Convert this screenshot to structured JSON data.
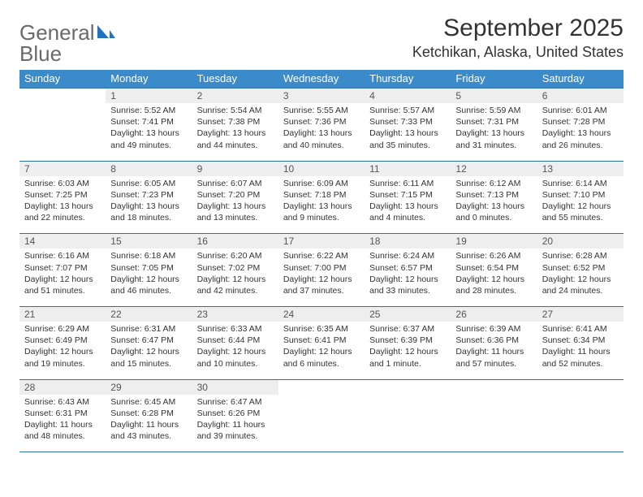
{
  "brand": {
    "word1": "General",
    "word2": "Blue",
    "textColor": "#6a6a6a",
    "accentColor": "#1f74bf"
  },
  "title": "September 2025",
  "location": "Ketchikan, Alaska, United States",
  "colors": {
    "headerBg": "#3b8bca",
    "headerText": "#ffffff",
    "dayBg": "#eeeeee",
    "rule": "#2e6fa8"
  },
  "weekdays": [
    "Sunday",
    "Monday",
    "Tuesday",
    "Wednesday",
    "Thursday",
    "Friday",
    "Saturday"
  ],
  "weeks": [
    [
      {
        "n": "",
        "lines": [
          "",
          "",
          "",
          ""
        ]
      },
      {
        "n": "1",
        "lines": [
          "Sunrise: 5:52 AM",
          "Sunset: 7:41 PM",
          "Daylight: 13 hours",
          "and 49 minutes."
        ]
      },
      {
        "n": "2",
        "lines": [
          "Sunrise: 5:54 AM",
          "Sunset: 7:38 PM",
          "Daylight: 13 hours",
          "and 44 minutes."
        ]
      },
      {
        "n": "3",
        "lines": [
          "Sunrise: 5:55 AM",
          "Sunset: 7:36 PM",
          "Daylight: 13 hours",
          "and 40 minutes."
        ]
      },
      {
        "n": "4",
        "lines": [
          "Sunrise: 5:57 AM",
          "Sunset: 7:33 PM",
          "Daylight: 13 hours",
          "and 35 minutes."
        ]
      },
      {
        "n": "5",
        "lines": [
          "Sunrise: 5:59 AM",
          "Sunset: 7:31 PM",
          "Daylight: 13 hours",
          "and 31 minutes."
        ]
      },
      {
        "n": "6",
        "lines": [
          "Sunrise: 6:01 AM",
          "Sunset: 7:28 PM",
          "Daylight: 13 hours",
          "and 26 minutes."
        ]
      }
    ],
    [
      {
        "n": "7",
        "lines": [
          "Sunrise: 6:03 AM",
          "Sunset: 7:25 PM",
          "Daylight: 13 hours",
          "and 22 minutes."
        ]
      },
      {
        "n": "8",
        "lines": [
          "Sunrise: 6:05 AM",
          "Sunset: 7:23 PM",
          "Daylight: 13 hours",
          "and 18 minutes."
        ]
      },
      {
        "n": "9",
        "lines": [
          "Sunrise: 6:07 AM",
          "Sunset: 7:20 PM",
          "Daylight: 13 hours",
          "and 13 minutes."
        ]
      },
      {
        "n": "10",
        "lines": [
          "Sunrise: 6:09 AM",
          "Sunset: 7:18 PM",
          "Daylight: 13 hours",
          "and 9 minutes."
        ]
      },
      {
        "n": "11",
        "lines": [
          "Sunrise: 6:11 AM",
          "Sunset: 7:15 PM",
          "Daylight: 13 hours",
          "and 4 minutes."
        ]
      },
      {
        "n": "12",
        "lines": [
          "Sunrise: 6:12 AM",
          "Sunset: 7:13 PM",
          "Daylight: 13 hours",
          "and 0 minutes."
        ]
      },
      {
        "n": "13",
        "lines": [
          "Sunrise: 6:14 AM",
          "Sunset: 7:10 PM",
          "Daylight: 12 hours",
          "and 55 minutes."
        ]
      }
    ],
    [
      {
        "n": "14",
        "lines": [
          "Sunrise: 6:16 AM",
          "Sunset: 7:07 PM",
          "Daylight: 12 hours",
          "and 51 minutes."
        ]
      },
      {
        "n": "15",
        "lines": [
          "Sunrise: 6:18 AM",
          "Sunset: 7:05 PM",
          "Daylight: 12 hours",
          "and 46 minutes."
        ]
      },
      {
        "n": "16",
        "lines": [
          "Sunrise: 6:20 AM",
          "Sunset: 7:02 PM",
          "Daylight: 12 hours",
          "and 42 minutes."
        ]
      },
      {
        "n": "17",
        "lines": [
          "Sunrise: 6:22 AM",
          "Sunset: 7:00 PM",
          "Daylight: 12 hours",
          "and 37 minutes."
        ]
      },
      {
        "n": "18",
        "lines": [
          "Sunrise: 6:24 AM",
          "Sunset: 6:57 PM",
          "Daylight: 12 hours",
          "and 33 minutes."
        ]
      },
      {
        "n": "19",
        "lines": [
          "Sunrise: 6:26 AM",
          "Sunset: 6:54 PM",
          "Daylight: 12 hours",
          "and 28 minutes."
        ]
      },
      {
        "n": "20",
        "lines": [
          "Sunrise: 6:28 AM",
          "Sunset: 6:52 PM",
          "Daylight: 12 hours",
          "and 24 minutes."
        ]
      }
    ],
    [
      {
        "n": "21",
        "lines": [
          "Sunrise: 6:29 AM",
          "Sunset: 6:49 PM",
          "Daylight: 12 hours",
          "and 19 minutes."
        ]
      },
      {
        "n": "22",
        "lines": [
          "Sunrise: 6:31 AM",
          "Sunset: 6:47 PM",
          "Daylight: 12 hours",
          "and 15 minutes."
        ]
      },
      {
        "n": "23",
        "lines": [
          "Sunrise: 6:33 AM",
          "Sunset: 6:44 PM",
          "Daylight: 12 hours",
          "and 10 minutes."
        ]
      },
      {
        "n": "24",
        "lines": [
          "Sunrise: 6:35 AM",
          "Sunset: 6:41 PM",
          "Daylight: 12 hours",
          "and 6 minutes."
        ]
      },
      {
        "n": "25",
        "lines": [
          "Sunrise: 6:37 AM",
          "Sunset: 6:39 PM",
          "Daylight: 12 hours",
          "and 1 minute."
        ]
      },
      {
        "n": "26",
        "lines": [
          "Sunrise: 6:39 AM",
          "Sunset: 6:36 PM",
          "Daylight: 11 hours",
          "and 57 minutes."
        ]
      },
      {
        "n": "27",
        "lines": [
          "Sunrise: 6:41 AM",
          "Sunset: 6:34 PM",
          "Daylight: 11 hours",
          "and 52 minutes."
        ]
      }
    ],
    [
      {
        "n": "28",
        "lines": [
          "Sunrise: 6:43 AM",
          "Sunset: 6:31 PM",
          "Daylight: 11 hours",
          "and 48 minutes."
        ]
      },
      {
        "n": "29",
        "lines": [
          "Sunrise: 6:45 AM",
          "Sunset: 6:28 PM",
          "Daylight: 11 hours",
          "and 43 minutes."
        ]
      },
      {
        "n": "30",
        "lines": [
          "Sunrise: 6:47 AM",
          "Sunset: 6:26 PM",
          "Daylight: 11 hours",
          "and 39 minutes."
        ]
      },
      {
        "n": "",
        "lines": [
          "",
          "",
          "",
          ""
        ]
      },
      {
        "n": "",
        "lines": [
          "",
          "",
          "",
          ""
        ]
      },
      {
        "n": "",
        "lines": [
          "",
          "",
          "",
          ""
        ]
      },
      {
        "n": "",
        "lines": [
          "",
          "",
          "",
          ""
        ]
      }
    ]
  ]
}
